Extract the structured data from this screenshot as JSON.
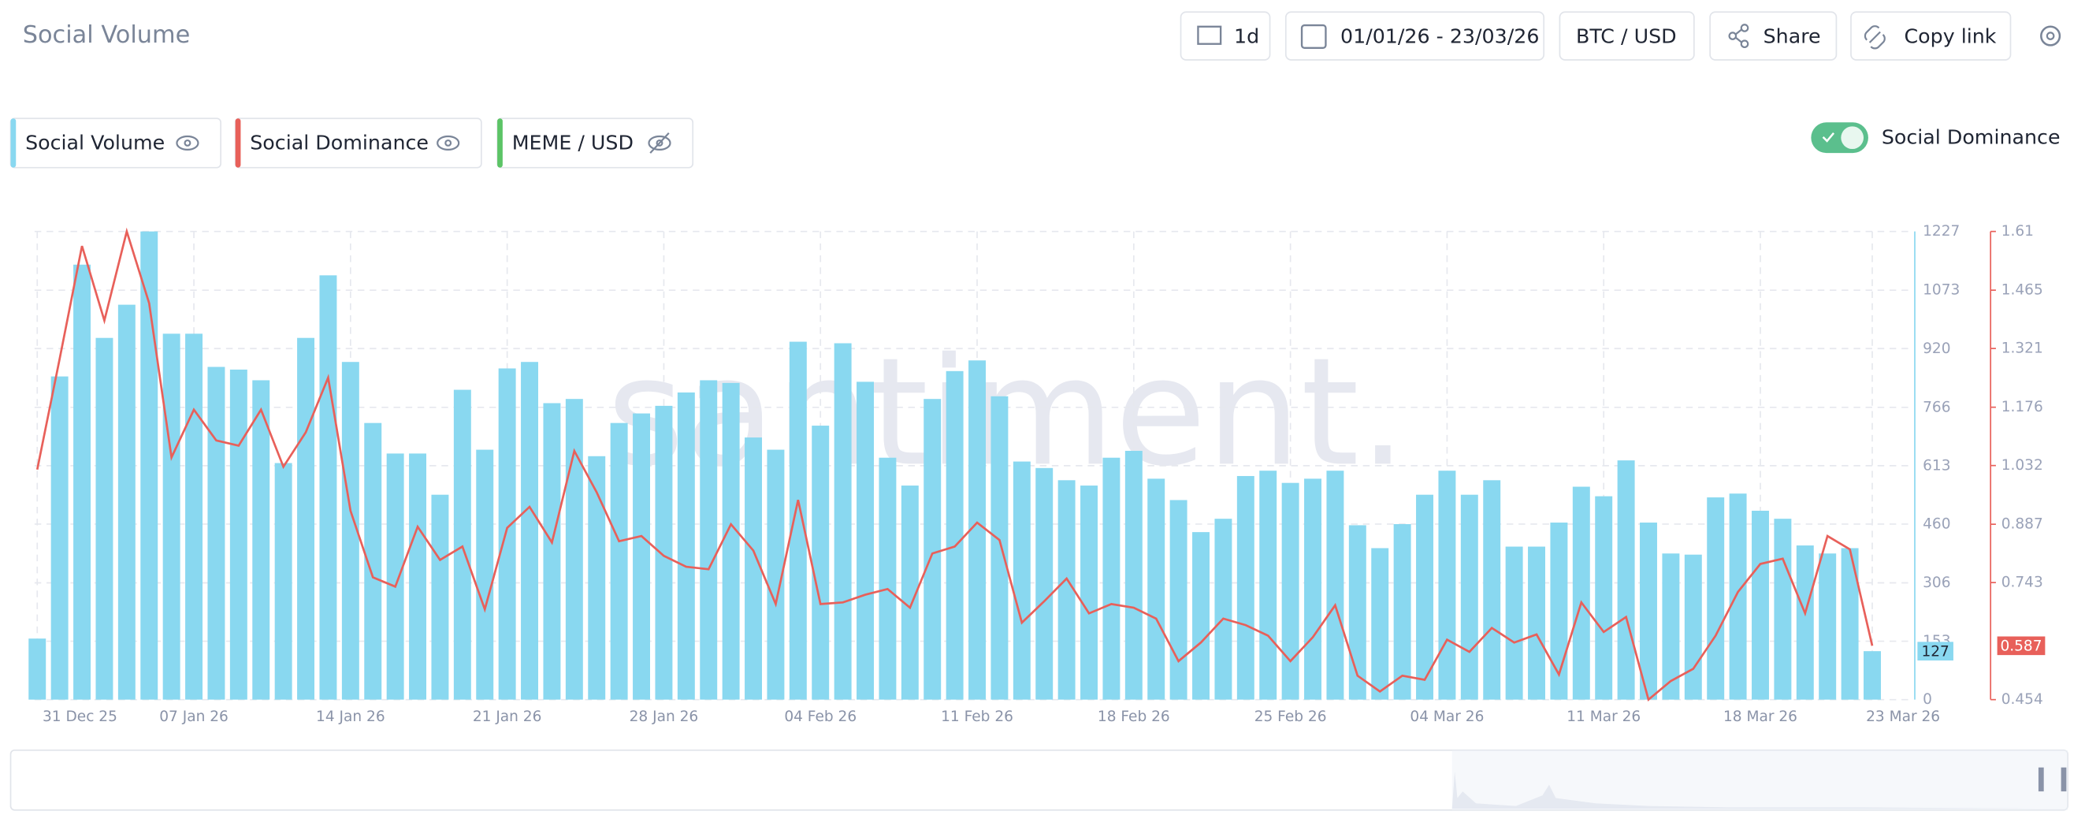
{
  "header": {
    "title": "Social Volume",
    "interval": "1d",
    "date_range": "01/01/26 - 23/03/26",
    "pair": "BTC / USD",
    "share": "Share",
    "copy_link": "Copy link",
    "toggle_label": "Social Dominance",
    "watermark": "santiment."
  },
  "chart_data": {
    "type": "bar_line",
    "categories": [
      "31 Dec 25",
      null,
      null,
      null,
      null,
      null,
      null,
      "07 Jan 26",
      null,
      null,
      null,
      null,
      null,
      null,
      "14 Jan 26",
      null,
      null,
      null,
      null,
      null,
      null,
      "21 Jan 26",
      null,
      null,
      null,
      null,
      null,
      null,
      "28 Jan 26",
      null,
      null,
      null,
      null,
      null,
      null,
      "04 Feb 26",
      null,
      null,
      null,
      null,
      null,
      null,
      "11 Feb 26",
      null,
      null,
      null,
      null,
      null,
      null,
      "18 Feb 26",
      null,
      null,
      null,
      null,
      null,
      null,
      "25 Feb 26",
      null,
      null,
      null,
      null,
      null,
      null,
      "04 Mar 26",
      null,
      null,
      null,
      null,
      null,
      null,
      "11 Mar 26",
      null,
      null,
      null,
      null,
      null,
      null,
      "18 Mar 26",
      null,
      null,
      null,
      null,
      "23 Mar 26"
    ],
    "series": [
      {
        "name": "Social Volume",
        "color": "#89d8f0",
        "type": "bar",
        "axis": "y",
        "values": [
          160,
          847,
          1140,
          948,
          1035,
          1227,
          959,
          959,
          872,
          865,
          837,
          620,
          948,
          1112,
          885,
          725,
          645,
          645,
          537,
          812,
          655,
          868,
          885,
          777,
          788,
          638,
          725,
          750,
          770,
          805,
          837,
          830,
          687,
          655,
          938,
          718,
          934,
          833,
          634,
          561,
          788,
          861,
          889,
          795,
          624,
          607,
          575,
          561,
          634,
          652,
          579,
          523,
          439,
          474,
          586,
          600,
          568,
          579,
          600,
          457,
          397,
          460,
          537,
          600,
          537,
          575,
          401,
          401,
          464,
          558,
          533,
          627,
          464,
          383,
          380,
          530,
          540,
          495,
          474,
          404,
          383,
          397,
          127
        ]
      },
      {
        "name": "Social Dominance",
        "color": "#e8605a",
        "type": "line",
        "axis": "y2",
        "values": [
          1.022,
          1.295,
          1.574,
          1.39,
          1.61,
          1.433,
          1.052,
          1.17,
          1.094,
          1.081,
          1.17,
          1.029,
          1.114,
          1.249,
          0.92,
          0.756,
          0.733,
          0.881,
          0.799,
          0.832,
          0.677,
          0.878,
          0.93,
          0.842,
          1.068,
          0.966,
          0.845,
          0.858,
          0.809,
          0.782,
          0.776,
          0.887,
          0.822,
          0.69,
          0.947,
          0.69,
          0.694,
          0.713,
          0.727,
          0.681,
          0.815,
          0.832,
          0.891,
          0.848,
          0.644,
          0.697,
          0.753,
          0.667,
          0.69,
          0.681,
          0.654,
          0.549,
          0.595,
          0.654,
          0.638,
          0.612,
          0.549,
          0.608,
          0.687,
          0.513,
          0.474,
          0.513,
          0.503,
          0.602,
          0.572,
          0.631,
          0.595,
          0.615,
          0.516,
          0.694,
          0.621,
          0.658,
          0.454,
          0.5,
          0.53,
          0.612,
          0.72,
          0.789,
          0.802,
          0.667,
          0.858,
          0.825,
          0.587
        ]
      }
    ],
    "hidden_series": [
      {
        "name": "MEME / USD",
        "color": "#5cc466"
      }
    ],
    "ylim": [
      0,
      1227
    ],
    "yticks": [
      0,
      153,
      306,
      460,
      613,
      766,
      920,
      1073,
      1227
    ],
    "y2lim": [
      0.454,
      1.61
    ],
    "y2ticks": [
      0.454,
      0.743,
      0.887,
      1.032,
      1.176,
      1.321,
      1.465,
      1.61
    ],
    "grid": true
  }
}
